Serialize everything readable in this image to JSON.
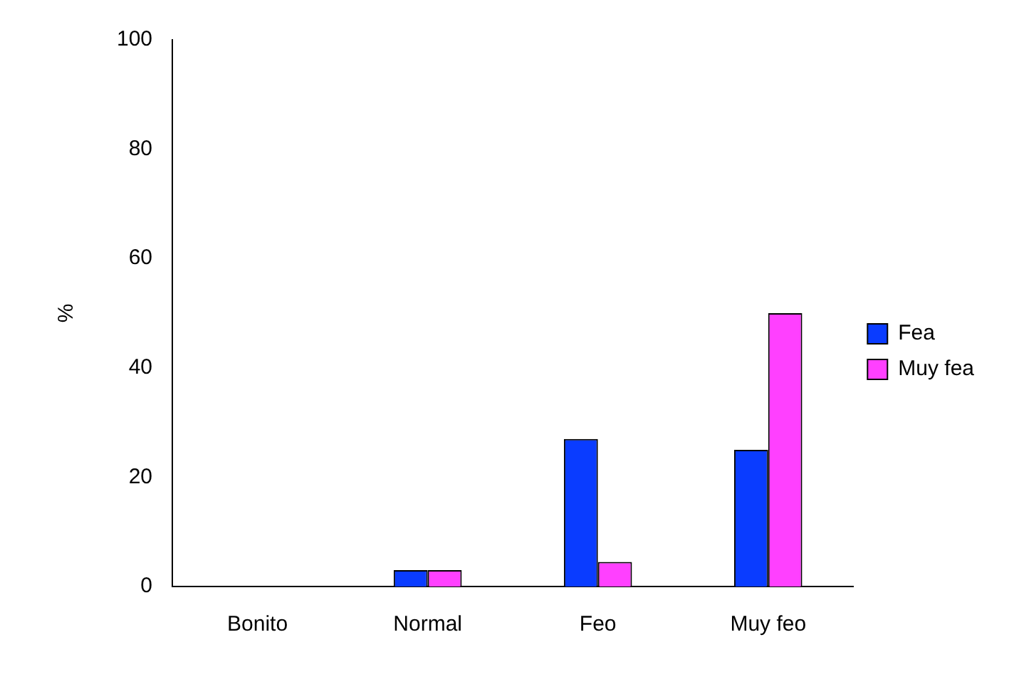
{
  "chart_data": {
    "type": "bar",
    "ylabel": "%",
    "categories": [
      "Bonito",
      "Normal",
      "Feo",
      "Muy feo"
    ],
    "series": [
      {
        "name": "Fea",
        "color": "#0a3cff",
        "values": [
          0,
          3,
          27,
          25
        ]
      },
      {
        "name": "Muy fea",
        "color": "#ff40ff",
        "values": [
          0,
          3,
          4.5,
          50
        ]
      }
    ],
    "ylim": [
      0,
      100
    ],
    "yticks": [
      0,
      20,
      40,
      60,
      80,
      100
    ],
    "grid": false,
    "legend": "right"
  }
}
